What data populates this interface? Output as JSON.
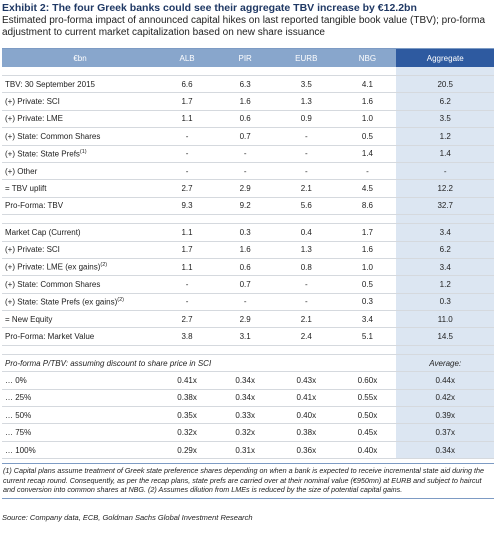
{
  "header": {
    "title": "Exhibit 2: The four Greek banks could see their aggregate TBV increase by €12.2bn",
    "subtitle": "Estimated pro-forma impact of announced capital hikes on last reported tangible book value (TBV); pro-forma adjustment to current market capitalization based on new share issuance"
  },
  "table": {
    "columns": [
      "€bn",
      "ALB",
      "PIR",
      "EURB",
      "NBG",
      "Aggregate"
    ],
    "sections": [
      {
        "rows": [
          {
            "label": "TBV: 30 September 2015",
            "cells": [
              "6.6",
              "6.3",
              "3.5",
              "4.1",
              "20.5"
            ]
          },
          {
            "label": "(+) Private: SCI",
            "cells": [
              "1.7",
              "1.6",
              "1.3",
              "1.6",
              "6.2"
            ]
          },
          {
            "label": "(+) Private: LME",
            "cells": [
              "1.1",
              "0.6",
              "0.9",
              "1.0",
              "3.5"
            ]
          },
          {
            "label": "(+) State: Common Shares",
            "cells": [
              "-",
              "0.7",
              "-",
              "0.5",
              "1.2"
            ]
          },
          {
            "label": "(+) State: State Prefs",
            "note": "(1)",
            "cells": [
              "-",
              "-",
              "-",
              "1.4",
              "1.4"
            ]
          },
          {
            "label": "(+) Other",
            "cells": [
              "-",
              "-",
              "-",
              "-",
              "-"
            ]
          },
          {
            "label": "= TBV uplift",
            "cells": [
              "2.7",
              "2.9",
              "2.1",
              "4.5",
              "12.2"
            ]
          },
          {
            "label": "Pro-Forma: TBV",
            "cells": [
              "9.3",
              "9.2",
              "5.6",
              "8.6",
              "32.7"
            ]
          }
        ]
      },
      {
        "rows": [
          {
            "label": "Market Cap (Current)",
            "cells": [
              "1.1",
              "0.3",
              "0.4",
              "1.7",
              "3.4"
            ]
          },
          {
            "label": "(+) Private: SCI",
            "cells": [
              "1.7",
              "1.6",
              "1.3",
              "1.6",
              "6.2"
            ]
          },
          {
            "label": "(+) Private: LME (ex gains)",
            "note": "(2)",
            "cells": [
              "1.1",
              "0.6",
              "0.8",
              "1.0",
              "3.4"
            ]
          },
          {
            "label": "(+) State: Common Shares",
            "cells": [
              "-",
              "0.7",
              "-",
              "0.5",
              "1.2"
            ]
          },
          {
            "label": "(+) State: State Prefs (ex gains)",
            "note": "(2)",
            "cells": [
              "-",
              "-",
              "-",
              "0.3",
              "0.3"
            ]
          },
          {
            "label": "= New Equity",
            "cells": [
              "2.7",
              "2.9",
              "2.1",
              "3.4",
              "11.0"
            ]
          },
          {
            "label": "Pro-Forma: Market Value",
            "cells": [
              "3.8",
              "3.1",
              "2.4",
              "5.1",
              "14.5"
            ]
          }
        ]
      }
    ]
  },
  "ptbv": {
    "label": "Pro-forma P/TBV: assuming discount to share price in SCI",
    "average_label": "Average:",
    "rows": [
      {
        "label": "… 0%",
        "cells": [
          "0.41x",
          "0.34x",
          "0.43x",
          "0.60x",
          "0.44x"
        ]
      },
      {
        "label": "… 25%",
        "cells": [
          "0.38x",
          "0.34x",
          "0.41x",
          "0.55x",
          "0.42x"
        ]
      },
      {
        "label": "… 50%",
        "cells": [
          "0.35x",
          "0.33x",
          "0.40x",
          "0.50x",
          "0.39x"
        ]
      },
      {
        "label": "… 75%",
        "cells": [
          "0.32x",
          "0.32x",
          "0.38x",
          "0.45x",
          "0.37x"
        ]
      },
      {
        "label": "… 100%",
        "cells": [
          "0.29x",
          "0.31x",
          "0.36x",
          "0.40x",
          "0.34x"
        ]
      }
    ]
  },
  "footnote": "(1) Capital plans assume treatment of Greek state preference shares depending on when a bank is expected to receive incremental state aid during the current recap round. Consequently, as per the recap plans, state prefs are carried over at their nominal value (€950mn) at EURB and subject to haircut and conversion into common shares at NBG. (2) Assumes dilution from LMEs is reduced by the size of potential capital gains.",
  "source": "Source: Company data, ECB, Goldman Sachs Global Investment Research"
}
